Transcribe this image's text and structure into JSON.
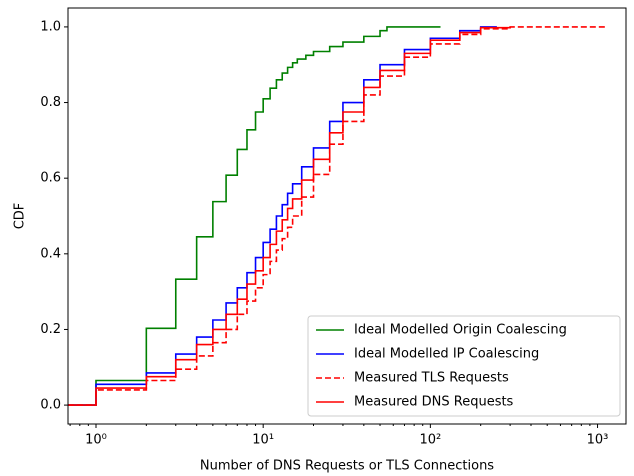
{
  "chart_data": {
    "type": "step",
    "xlabel": "Number of DNS Requests or TLS Connections",
    "ylabel": "CDF",
    "xscale": "log",
    "xlim": [
      0.68,
      1480
    ],
    "xticks": [
      {
        "value": 1,
        "label": "10⁰"
      },
      {
        "value": 10,
        "label": "10¹"
      },
      {
        "value": 100,
        "label": "10²"
      },
      {
        "value": 1000,
        "label": "10³"
      }
    ],
    "ylim": [
      -0.05,
      1.05
    ],
    "yticks": [
      {
        "value": 0,
        "label": "0.0"
      },
      {
        "value": 0.2,
        "label": "0.2"
      },
      {
        "value": 0.4,
        "label": "0.4"
      },
      {
        "value": 0.6,
        "label": "0.6"
      },
      {
        "value": 0.8,
        "label": "0.8"
      },
      {
        "value": 1,
        "label": "1.0"
      }
    ],
    "legend": "lower right",
    "series": [
      {
        "name": "Ideal Modelled Origin Coalescing",
        "color": "#008000",
        "linestyle": "solid",
        "x": [
          1,
          2,
          3,
          4,
          5,
          6,
          7,
          8,
          9,
          10,
          11,
          12,
          13,
          14,
          15,
          16,
          18,
          20,
          25,
          30,
          40,
          50,
          55,
          115
        ],
        "values": [
          0.065,
          0.203,
          0.333,
          0.445,
          0.538,
          0.608,
          0.676,
          0.728,
          0.775,
          0.81,
          0.838,
          0.86,
          0.878,
          0.893,
          0.905,
          0.915,
          0.925,
          0.935,
          0.948,
          0.96,
          0.975,
          0.99,
          1.0,
          1.0
        ]
      },
      {
        "name": "Ideal Modelled IP Coalescing",
        "color": "#0000ff",
        "linestyle": "solid",
        "x": [
          1,
          2,
          3,
          4,
          5,
          6,
          7,
          8,
          9,
          10,
          11,
          12,
          13,
          14,
          15,
          17,
          20,
          25,
          30,
          40,
          50,
          70,
          100,
          150,
          200,
          250
        ],
        "values": [
          0.055,
          0.085,
          0.135,
          0.18,
          0.225,
          0.27,
          0.31,
          0.35,
          0.39,
          0.43,
          0.465,
          0.5,
          0.53,
          0.56,
          0.585,
          0.63,
          0.68,
          0.75,
          0.8,
          0.86,
          0.9,
          0.94,
          0.97,
          0.99,
          1.0,
          1.0
        ]
      },
      {
        "name": "Measured TLS Requests",
        "color": "#ff0000",
        "linestyle": "dashed",
        "x": [
          1,
          2,
          3,
          4,
          5,
          6,
          7,
          8,
          9,
          10,
          11,
          12,
          13,
          14,
          15,
          17,
          20,
          25,
          30,
          40,
          50,
          70,
          100,
          150,
          200,
          300,
          1150
        ],
        "values": [
          0.04,
          0.065,
          0.095,
          0.13,
          0.165,
          0.2,
          0.24,
          0.275,
          0.31,
          0.345,
          0.38,
          0.41,
          0.44,
          0.47,
          0.5,
          0.55,
          0.61,
          0.69,
          0.75,
          0.82,
          0.87,
          0.92,
          0.955,
          0.98,
          0.995,
          1.0,
          1.0
        ]
      },
      {
        "name": "Measured DNS Requests",
        "color": "#ff0000",
        "linestyle": "solid",
        "x": [
          1,
          2,
          3,
          4,
          5,
          6,
          7,
          8,
          9,
          10,
          11,
          12,
          13,
          14,
          15,
          17,
          20,
          25,
          30,
          40,
          50,
          70,
          100,
          150,
          200,
          300
        ],
        "values": [
          0.045,
          0.075,
          0.12,
          0.16,
          0.2,
          0.24,
          0.28,
          0.32,
          0.355,
          0.39,
          0.425,
          0.46,
          0.49,
          0.52,
          0.545,
          0.595,
          0.65,
          0.72,
          0.775,
          0.84,
          0.885,
          0.93,
          0.965,
          0.985,
          0.998,
          1.0
        ]
      }
    ]
  }
}
